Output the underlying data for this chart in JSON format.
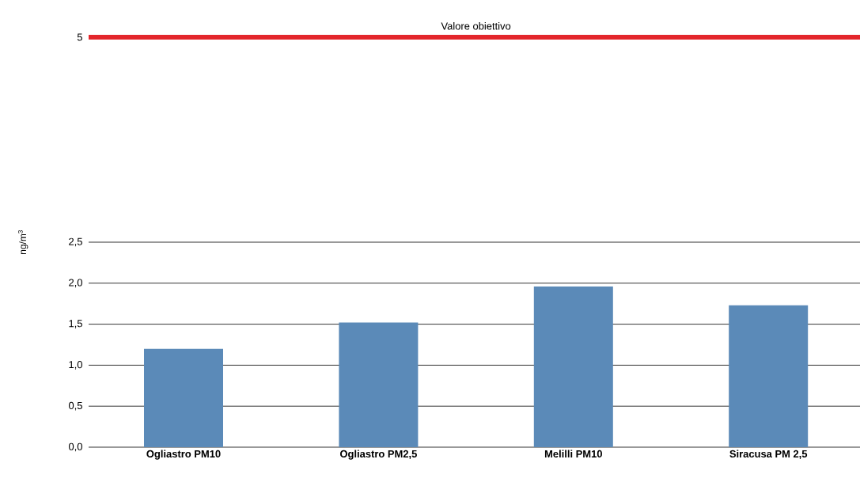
{
  "chart_data": {
    "type": "bar",
    "ylabel": "ng/m$^{3}$",
    "categories": [
      "Ogliastro PM10",
      "Ogliastro PM2,5",
      "Melilli PM10",
      "Siracusa PM 2,5"
    ],
    "values": [
      1.2,
      1.52,
      1.96,
      1.73
    ],
    "color": "#5b8ab8",
    "ylim": [
      0,
      5
    ],
    "yticks": [
      {
        "value": 0,
        "label": "0,0"
      },
      {
        "value": 0.5,
        "label": "0,5"
      },
      {
        "value": 1.0,
        "label": "1,0"
      },
      {
        "value": 1.5,
        "label": "1,5"
      },
      {
        "value": 2.0,
        "label": "2,0"
      },
      {
        "value": 2.5,
        "label": "2,5"
      },
      5
    ],
    "ref_lines": [
      {
        "axis": "y",
        "value": 5,
        "label": "Valore obiettivo",
        "color": "#e3262b"
      }
    ],
    "grid": "y"
  }
}
